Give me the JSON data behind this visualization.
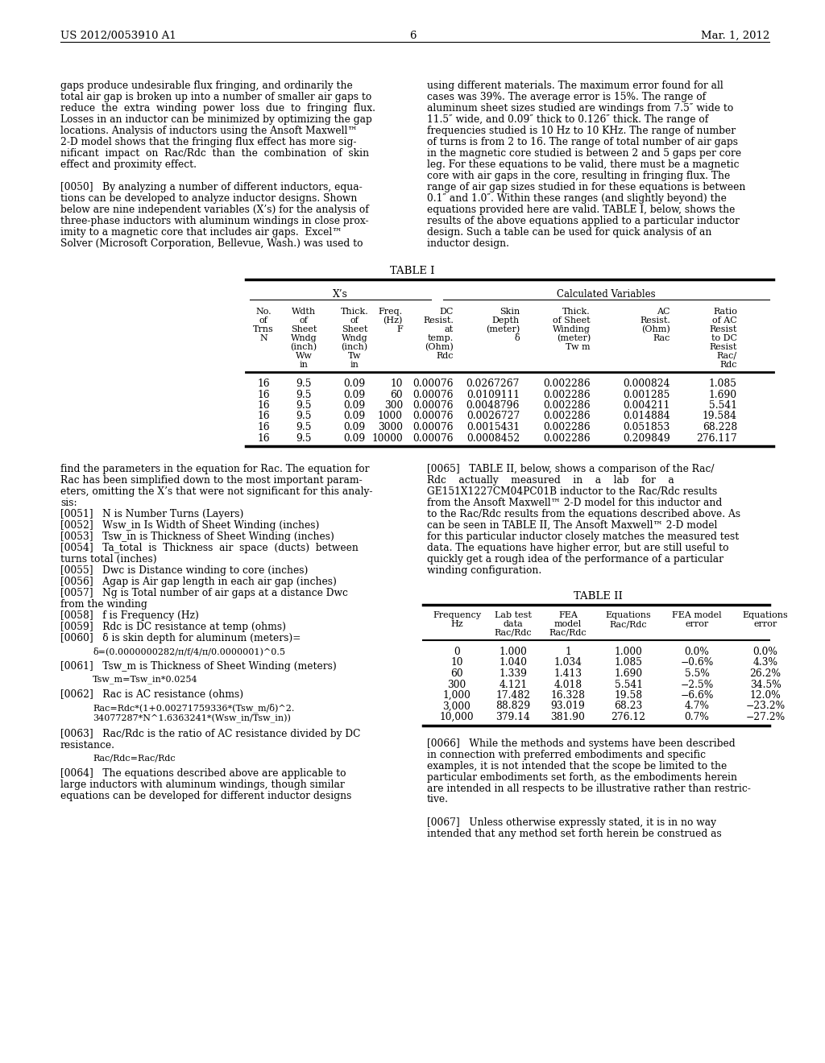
{
  "page_header_left": "US 2012/0053910 A1",
  "page_header_right": "Mar. 1, 2012",
  "page_number": "6",
  "bg_color": "#ffffff",
  "left_column_text": [
    "gaps produce undesirable flux fringing, and ordinarily the",
    "total air gap is broken up into a number of smaller air gaps to",
    "reduce  the  extra  winding  power  loss  due  to  fringing  flux.",
    "Losses in an inductor can be minimized by optimizing the gap",
    "locations. Analysis of inductors using the Ansoft Maxwell™",
    "2-D model shows that the fringing flux effect has more sig-",
    "nificant  impact  on  Rac/Rdc  than  the  combination  of  skin",
    "effect and proximity effect.",
    "",
    "[0050]   By analyzing a number of different inductors, equa-",
    "tions can be developed to analyze inductor designs. Shown",
    "below are nine independent variables (X’s) for the analysis of",
    "three-phase inductors with aluminum windings in close prox-",
    "imity to a magnetic core that includes air gaps.  Excel™",
    "Solver (Microsoft Corporation, Bellevue, Wash.) was used to"
  ],
  "right_column_text": [
    "using different materials. The maximum error found for all",
    "cases was 39%. The average error is 15%. The range of",
    "aluminum sheet sizes studied are windings from 7.5″ wide to",
    "11.5″ wide, and 0.09″ thick to 0.126″ thick. The range of",
    "frequencies studied is 10 Hz to 10 KHz. The range of number",
    "of turns is from 2 to 16. The range of total number of air gaps",
    "in the magnetic core studied is between 2 and 5 gaps per core",
    "leg. For these equations to be valid, there must be a magnetic",
    "core with air gaps in the core, resulting in fringing flux. The",
    "range of air gap sizes studied in for these equations is between",
    "0.1″ and 1.0″. Within these ranges (and slightly beyond) the",
    "equations provided here are valid. TABLE I, below, shows the",
    "results of the above equations applied to a particular inductor",
    "design. Such a table can be used for quick analysis of an",
    "inductor design."
  ],
  "table1_data": [
    [
      "16",
      "9.5",
      "0.09",
      "10",
      "0.00076",
      "0.0267267",
      "0.002286",
      "0.000824",
      "1.085"
    ],
    [
      "16",
      "9.5",
      "0.09",
      "60",
      "0.00076",
      "0.0109111",
      "0.002286",
      "0.001285",
      "1.690"
    ],
    [
      "16",
      "9.5",
      "0.09",
      "300",
      "0.00076",
      "0.0048796",
      "0.002286",
      "0.004211",
      "5.541"
    ],
    [
      "16",
      "9.5",
      "0.09",
      "1000",
      "0.00076",
      "0.0026727",
      "0.002286",
      "0.014884",
      "19.584"
    ],
    [
      "16",
      "9.5",
      "0.09",
      "3000",
      "0.00076",
      "0.0015431",
      "0.002286",
      "0.051853",
      "68.228"
    ],
    [
      "16",
      "9.5",
      "0.09",
      "10000",
      "0.00076",
      "0.0008452",
      "0.002286",
      "0.209849",
      "276.117"
    ]
  ],
  "lower_left_text": [
    "find the parameters in the equation for Rac. The equation for",
    "Rac has been simplified down to the most important param-",
    "eters, omitting the X’s that were not significant for this analy-",
    "sis:",
    "[0051]   N is Number Turns (Layers)",
    "[0052]   Wsw_in Is Width of Sheet Winding (inches)",
    "[0053]   Tsw_in is Thickness of Sheet Winding (inches)",
    "[0054]   Ta_total  is  Thickness  air  space  (ducts)  between",
    "turns total (inches)",
    "[0055]   Dwc is Distance winding to core (inches)",
    "[0056]   Agap is Air gap length in each air gap (inches)",
    "[0057]   Ng is Total number of air gaps at a distance Dwc",
    "from the winding",
    "[0058]   f is Frequency (Hz)",
    "[0059]   Rdc is DC resistance at temp (ohms)",
    "[0060]   δ is skin depth for aluminum (meters)="
  ],
  "delta_formula": "δ=(0.0000000282/π/f/4/π/0.0000001)^0.5",
  "lower_left_text2": [
    "[0061]   Tsw_m is Thickness of Sheet Winding (meters)"
  ],
  "tsw_formula": "Tsw_m=Tsw_in*0.0254",
  "lower_left_text3": [
    "[0062]   Rac is AC resistance (ohms)"
  ],
  "rac_formula1": "Rac=Rdc*(1+0.00271759336*(Tsw_m/δ)^2.",
  "rac_formula2": "34077287*N^1.6363241*(Wsw_in/Tsw_in))",
  "lower_left_text4": [
    "[0063]   Rac/Rdc is the ratio of AC resistance divided by DC",
    "resistance."
  ],
  "racrdc_formula": "Rac/Rdc=Rac/Rdc",
  "lower_left_text5": [
    "[0064]   The equations described above are applicable to",
    "large inductors with aluminum windings, though similar",
    "equations can be developed for different inductor designs"
  ],
  "lower_right_text": [
    "[0065]   TABLE II, below, shows a comparison of the Rac/",
    "Rdc    actually    measured    in    a    lab    for    a",
    "GE151X1227CM04PC01B inductor to the Rac/Rdc results",
    "from the Ansoft Maxwell™ 2-D model for this inductor and",
    "to the Rac/Rdc results from the equations described above. As",
    "can be seen in TABLE II, The Ansoft Maxwell™ 2-D model",
    "for this particular inductor closely matches the measured test",
    "data. The equations have higher error, but are still useful to",
    "quickly get a rough idea of the performance of a particular",
    "winding configuration."
  ],
  "table2_data": [
    [
      "0",
      "1.000",
      "1",
      "1.000",
      "0.0%",
      "0.0%"
    ],
    [
      "10",
      "1.040",
      "1.034",
      "1.085",
      "−0.6%",
      "4.3%"
    ],
    [
      "60",
      "1.339",
      "1.413",
      "1.690",
      "5.5%",
      "26.2%"
    ],
    [
      "300",
      "4.121",
      "4.018",
      "5.541",
      "−2.5%",
      "34.5%"
    ],
    [
      "1,000",
      "17.482",
      "16.328",
      "19.58",
      "−6.6%",
      "12.0%"
    ],
    [
      "3,000",
      "88.829",
      "93.019",
      "68.23",
      "4.7%",
      "−23.2%"
    ],
    [
      "10,000",
      "379.14",
      "381.90",
      "276.12",
      "0.7%",
      "−27.2%"
    ]
  ],
  "bottom_right_text": [
    "[0066]   While the methods and systems have been described",
    "in connection with preferred embodiments and specific",
    "examples, it is not intended that the scope be limited to the",
    "particular embodiments set forth, as the embodiments herein",
    "are intended in all respects to be illustrative rather than restric-",
    "tive.",
    "",
    "[0067]   Unless otherwise expressly stated, it is in no way",
    "intended that any method set forth herein be construed as"
  ]
}
